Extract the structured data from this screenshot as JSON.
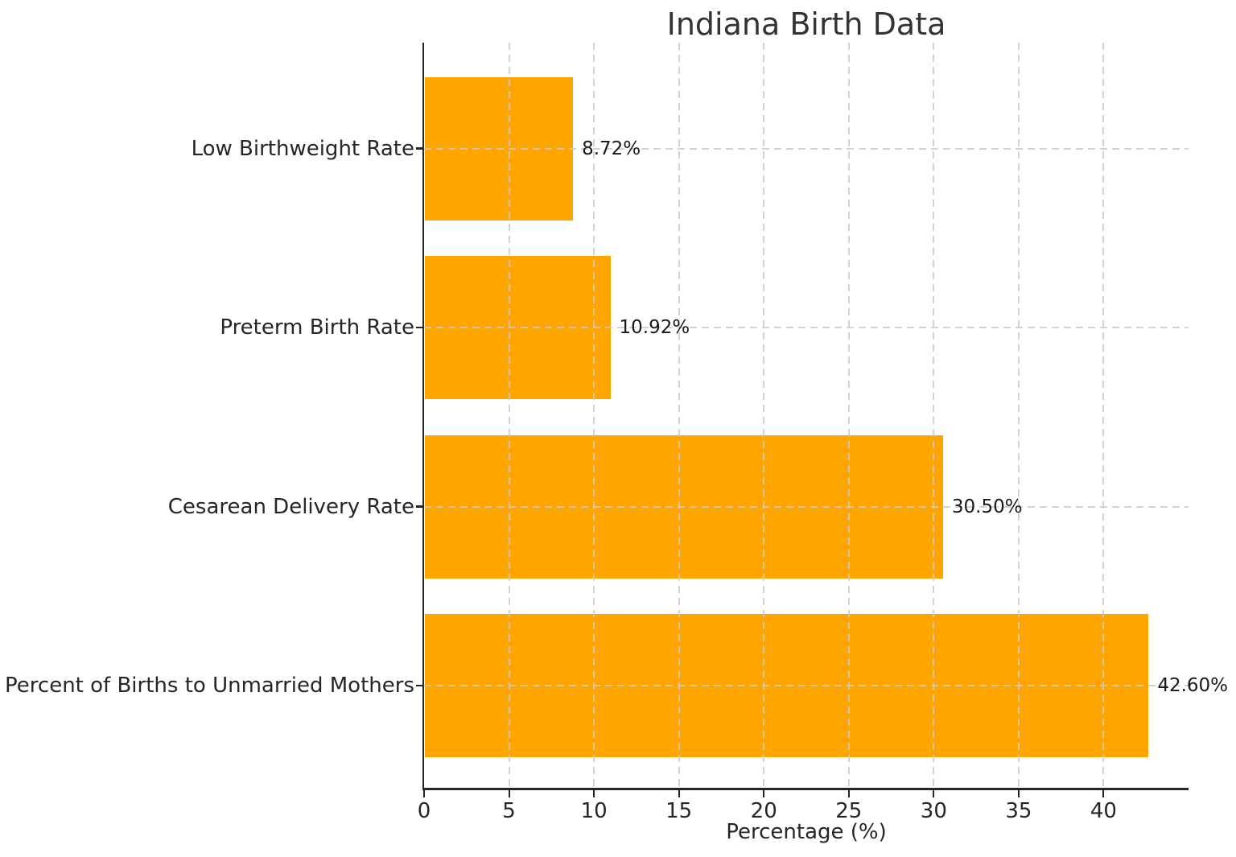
{
  "chart_data": {
    "type": "bar",
    "orientation": "horizontal",
    "title": "Indiana Birth Data",
    "xlabel": "Percentage (%)",
    "ylabel": "",
    "categories": [
      "Low Birthweight Rate",
      "Preterm Birth Rate",
      "Cesarean Delivery Rate",
      "Percent of Births to Unmarried Mothers"
    ],
    "values": [
      8.72,
      10.92,
      30.5,
      42.6
    ],
    "value_labels": [
      "8.72%",
      "10.92%",
      "30.50%",
      "42.60%"
    ],
    "xticks": [
      0,
      5,
      10,
      15,
      20,
      25,
      30,
      35,
      40
    ],
    "xlim": [
      0,
      45
    ],
    "bar_color": "#FFA500",
    "grid": {
      "style": "dashed",
      "color": "#cbcbcb",
      "axes": "both"
    },
    "legend": "none",
    "background": "#ffffff",
    "text_color": "#262626"
  }
}
